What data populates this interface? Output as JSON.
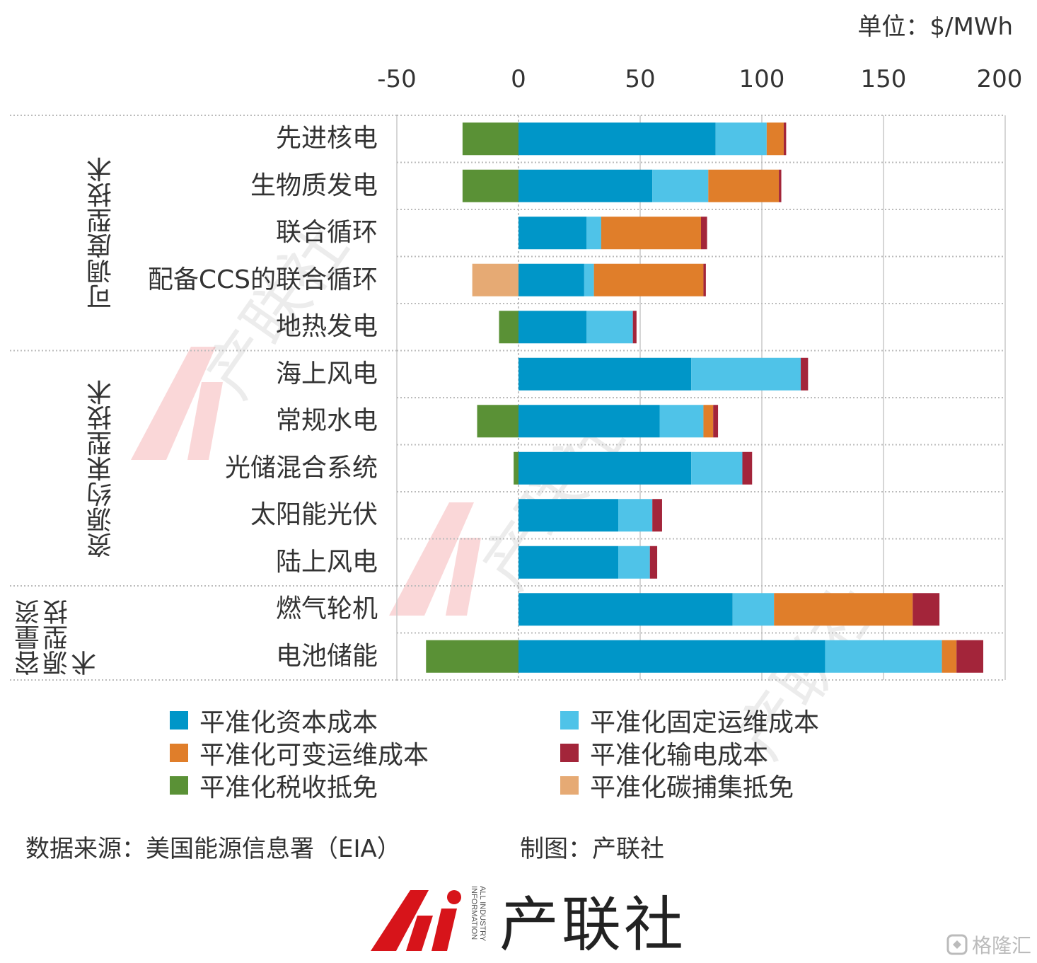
{
  "chart_data": {
    "type": "bar",
    "orientation": "horizontal",
    "stacked": true,
    "unit_label": "单位：$/MWh",
    "xlim": [
      -50,
      200
    ],
    "xticks": [
      "-50",
      "0",
      "50",
      "100",
      "150",
      "200"
    ],
    "grid": true,
    "legend_position": "bottom",
    "groups": [
      {
        "name": "可调度型技术",
        "categories": [
          "先进核电",
          "生物质发电",
          "联合循环",
          "配备CCS的联合循环",
          "地热发电"
        ]
      },
      {
        "name": "资源约束型技术",
        "categories": [
          "海上风电",
          "常规水电",
          "光储混合系统",
          "太阳能光伏",
          "陆上风电"
        ]
      },
      {
        "name": "容量资源型技术",
        "categories": [
          "燃气轮机",
          "电池储能"
        ]
      }
    ],
    "categories": [
      "先进核电",
      "生物质发电",
      "联合循环",
      "配备CCS的联合循环",
      "地热发电",
      "海上风电",
      "常规水电",
      "光储混合系统",
      "太阳能光伏",
      "陆上风电",
      "燃气轮机",
      "电池储能"
    ],
    "series": [
      {
        "name": "平准化资本成本",
        "color": "#0096c8",
        "values": [
          81,
          55,
          28,
          27,
          28,
          71,
          58,
          71,
          41,
          41,
          88,
          126
        ]
      },
      {
        "name": "平准化固定运维成本",
        "color": "#4fc3e8",
        "values": [
          21,
          23,
          6,
          4,
          19,
          45,
          18,
          21,
          14,
          13,
          17,
          48
        ]
      },
      {
        "name": "平准化可变运维成本",
        "color": "#e07e2a",
        "values": [
          7,
          29,
          41,
          45,
          0,
          0,
          4,
          0,
          0,
          0,
          57,
          6
        ]
      },
      {
        "name": "平准化输电成本",
        "color": "#a3253a",
        "values": [
          1,
          1,
          2.5,
          1,
          1.5,
          3,
          2,
          4,
          4,
          3,
          11,
          11
        ]
      },
      {
        "name": "平准化税收抵免",
        "color": "#5a9136",
        "values": [
          -23,
          -23,
          0,
          0,
          -8,
          0,
          -17,
          -2,
          0,
          0,
          0,
          -38
        ]
      },
      {
        "name": "平准化碳捕集抵免",
        "color": "#e6aa74",
        "values": [
          0,
          0,
          0,
          -19,
          0,
          0,
          0,
          0,
          0,
          0,
          0,
          0
        ]
      }
    ]
  },
  "footer": {
    "source": "数据来源：美国能源信息署（EIA）",
    "credit": "制图：产联社"
  },
  "brand": {
    "logo_text": "Ai",
    "name": "产联社",
    "sub": "ALL INDUSTRY INFORMATION"
  },
  "watermark": {
    "text": "产联社"
  },
  "corner_badge": {
    "text": "格隆汇"
  }
}
